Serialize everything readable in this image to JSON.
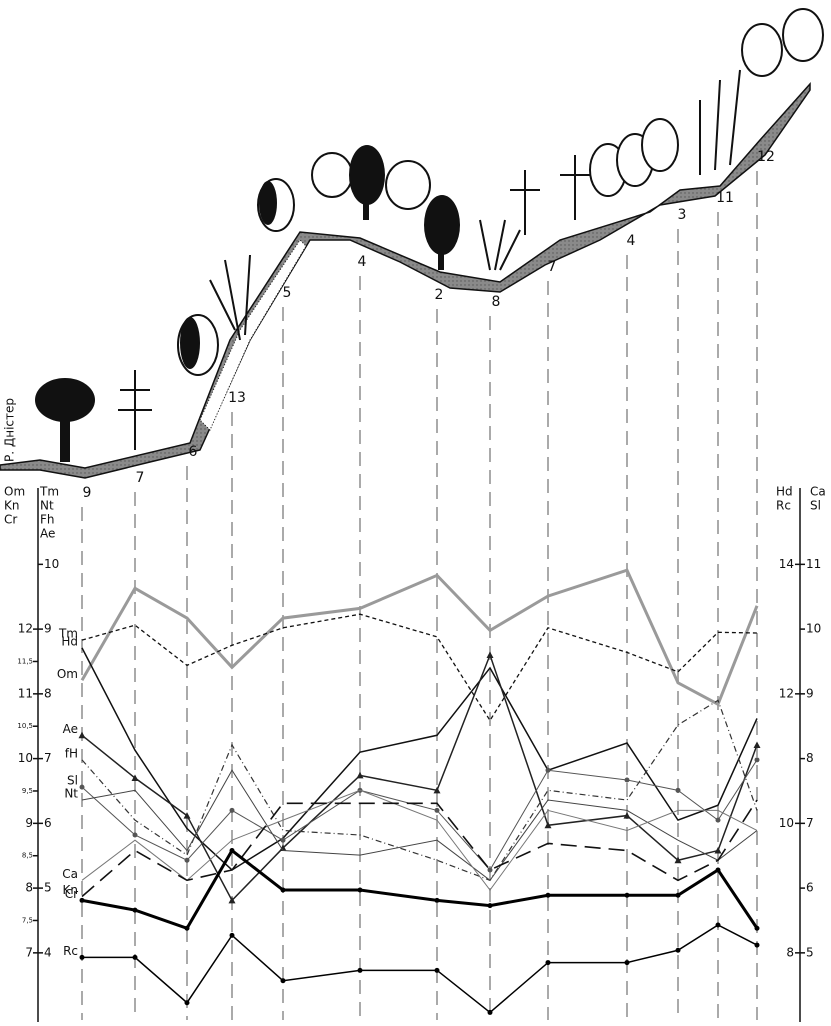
{
  "chart_data": {
    "type": "line",
    "river_label": "Р. Дністер",
    "categories": [
      "9",
      "7",
      "6",
      "13",
      "5",
      "4",
      "2",
      "8",
      "7",
      "4",
      "3",
      "11",
      "12"
    ],
    "axes": [
      {
        "position": "left-outer",
        "header": [
          "Om",
          "Kn",
          "Cr"
        ],
        "ylim": [
          6,
          14
        ],
        "yticks": [
          7,
          {
            "value": 7.5,
            "label": "7,5"
          },
          8,
          {
            "value": 8.5,
            "label": "8,5"
          },
          9,
          {
            "value": 9.5,
            "label": "9,5"
          },
          10,
          {
            "value": 10.5,
            "label": "10,5"
          },
          11,
          {
            "value": 11.5,
            "label": "11,5"
          },
          12
        ]
      },
      {
        "position": "left-inner",
        "header": [
          "Tm",
          "Nt",
          "Fh",
          "Ae"
        ],
        "ylim": [
          3,
          11
        ],
        "yticks": [
          4,
          5,
          6,
          7,
          8,
          9,
          10
        ]
      },
      {
        "position": "right-inner",
        "header": [
          "Hd",
          "Rc"
        ],
        "ylim": [
          7,
          15
        ],
        "yticks": [
          8,
          10,
          12,
          14
        ]
      },
      {
        "position": "right-outer",
        "header": [
          "Ca",
          "Sl"
        ],
        "ylim": [
          4,
          12
        ],
        "yticks": [
          5,
          6,
          7,
          8,
          9,
          10,
          11
        ]
      }
    ],
    "series": [
      {
        "name": "Om",
        "axis": 0,
        "color": "#9a9a9a",
        "line_style": "thick",
        "marker": "none",
        "values": [
          11.21,
          12.63,
          12.17,
          11.41,
          12.17,
          12.32,
          12.83,
          11.98,
          12.51,
          12.91,
          11.17,
          10.84,
          12.36
        ]
      },
      {
        "name": "Tm",
        "axis": 1,
        "color": "#111111",
        "line_style": "dashed",
        "marker": "none",
        "values": [
          8.83,
          9.06,
          8.44,
          8.75,
          9.02,
          9.23,
          8.88,
          7.59,
          9.02,
          8.64,
          8.34,
          8.95,
          8.94
        ]
      },
      {
        "name": "Hd",
        "axis": 2,
        "color": "#111111",
        "line_style": "solid",
        "marker": "none",
        "values": [
          12.71,
          11.13,
          9.92,
          9.28,
          9.77,
          11.1,
          11.36,
          12.4,
          10.82,
          11.24,
          10.05,
          10.28,
          11.62
        ]
      },
      {
        "name": "Ae",
        "axis": 1,
        "color": "#222222",
        "line_style": "solid",
        "marker": "triangle",
        "values": [
          7.36,
          6.7,
          6.12,
          4.81,
          5.62,
          6.74,
          6.51,
          8.6,
          5.97,
          6.12,
          5.43,
          5.58,
          7.21
        ]
      },
      {
        "name": "fH",
        "axis": 1,
        "color": "#333333",
        "line_style": "dashdot",
        "marker": "none",
        "values": [
          6.98,
          6.05,
          5.51,
          7.21,
          5.89,
          5.82,
          5.43,
          5.12,
          6.51,
          6.36,
          7.52,
          7.9,
          6.2
        ]
      },
      {
        "name": "Sl",
        "axis": 3,
        "color": "#555555",
        "line_style": "thin",
        "marker": "dot",
        "values": [
          7.56,
          6.82,
          6.43,
          7.2,
          6.74,
          7.51,
          7.2,
          6.28,
          7.82,
          7.67,
          7.51,
          7.05,
          7.98
        ]
      },
      {
        "name": "Nt",
        "axis": 1,
        "color": "#444444",
        "line_style": "thin",
        "marker": "none",
        "values": [
          6.36,
          6.51,
          5.58,
          6.82,
          5.58,
          5.51,
          5.74,
          5.12,
          6.36,
          6.2,
          5.74,
          5.43,
          5.89
        ]
      },
      {
        "name": "Ca",
        "axis": 3,
        "color": "#777777",
        "line_style": "thin",
        "marker": "none",
        "values": [
          6.12,
          6.74,
          6.12,
          6.74,
          7.05,
          7.51,
          7.05,
          5.97,
          7.2,
          6.89,
          7.2,
          7.2,
          6.89
        ]
      },
      {
        "name": "Kn",
        "axis": 0,
        "color": "#111111",
        "line_style": "longdash",
        "marker": "none",
        "values": [
          7.87,
          8.58,
          8.12,
          8.28,
          9.31,
          9.31,
          9.31,
          8.28,
          8.69,
          8.58,
          8.12,
          8.43,
          9.36
        ]
      },
      {
        "name": "Cr",
        "axis": 0,
        "color": "#000000",
        "line_style": "thick",
        "marker": "dot",
        "values": [
          7.81,
          7.66,
          7.38,
          8.58,
          7.97,
          7.97,
          7.81,
          7.73,
          7.89,
          7.89,
          7.89,
          8.28,
          7.38
        ]
      },
      {
        "name": "Rc",
        "axis": 2,
        "color": "#000000",
        "line_style": "solid",
        "marker": "dot",
        "values": [
          7.93,
          7.93,
          7.23,
          8.27,
          7.57,
          7.73,
          7.73,
          7.08,
          7.85,
          7.85,
          8.04,
          8.43,
          8.12
        ]
      }
    ]
  }
}
